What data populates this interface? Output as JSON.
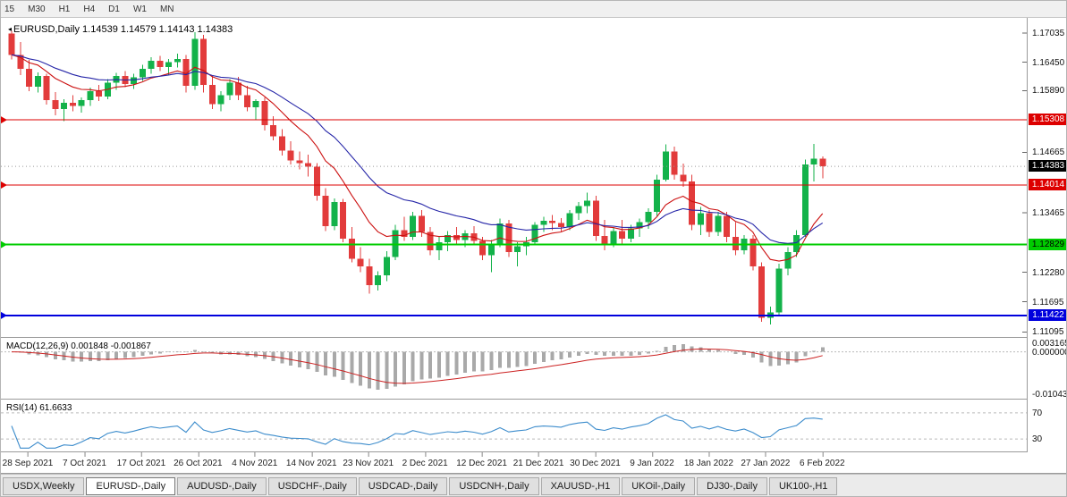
{
  "toolbar": {
    "timeframes": [
      "15",
      "M30",
      "H1",
      "H4",
      "D1",
      "W1",
      "MN"
    ]
  },
  "tabs": {
    "items": [
      {
        "label": "USDX,Weekly",
        "active": false
      },
      {
        "label": "EURUSD-,Daily",
        "active": true
      },
      {
        "label": "AUDUSD-,Daily",
        "active": false
      },
      {
        "label": "USDCHF-,Daily",
        "active": false
      },
      {
        "label": "USDCAD-,Daily",
        "active": false
      },
      {
        "label": "USDCNH-,Daily",
        "active": false
      },
      {
        "label": "XAUUSD-,H1",
        "active": false
      },
      {
        "label": "UKOil-,Daily",
        "active": false
      },
      {
        "label": "DJ30-,Daily",
        "active": false
      },
      {
        "label": "UK100-,H1",
        "active": false
      }
    ]
  },
  "main_chart": {
    "marker_glyph": "◂",
    "title_symbol": "EURUSD,Daily",
    "title_ohlc": "1.14539 1.14579 1.14143 1.14383",
    "price_min": 1.1103,
    "price_max": 1.1728,
    "current_price": {
      "label": "1.14383",
      "value": 1.14383
    },
    "levels": [
      {
        "label": "1.15308",
        "value": 1.15308,
        "color": "#dd0000",
        "tag_fg": "#ffffff",
        "thickness": 1
      },
      {
        "label": "1.14014",
        "value": 1.14014,
        "color": "#dd0000",
        "tag_fg": "#ffffff",
        "thickness": 1
      },
      {
        "label": "1.12829",
        "value": 1.12829,
        "color": "#00cc00",
        "tag_fg": "#000000",
        "thickness": 2
      },
      {
        "label": "1.11422",
        "value": 1.11422,
        "color": "#0000dd",
        "tag_fg": "#ffffff",
        "thickness": 2
      }
    ],
    "axis_ticks": [
      {
        "label": "1.17035",
        "value": 1.17035
      },
      {
        "label": "1.16450",
        "value": 1.1645
      },
      {
        "label": "1.15890",
        "value": 1.1589
      },
      {
        "label": "1.14665",
        "value": 1.14665
      },
      {
        "label": "1.13465",
        "value": 1.13465
      },
      {
        "label": "1.12280",
        "value": 1.1228
      },
      {
        "label": "1.11695",
        "value": 1.11695
      },
      {
        "label": "1.11095",
        "value": 1.11095
      }
    ],
    "colors": {
      "up": "#13b24a",
      "down": "#e23b3b",
      "ma_fast": "#cc1111",
      "ma_slow": "#2626a8",
      "bid_line": "#999999"
    }
  },
  "macd_panel": {
    "label": "MACD(12,26,9) 0.001848 -0.001867",
    "ticks": [
      "0.003165",
      "0.000000",
      "-0.010430"
    ],
    "histogram_color": "#a9a9a9",
    "signal_color": "#cc2222"
  },
  "rsi_panel": {
    "label": "RSI(14) 61.6633",
    "value": 61.6633,
    "ticks": [
      "70",
      "30"
    ],
    "levels": [
      70,
      30
    ],
    "line_color": "#3c8ccc"
  },
  "date_axis": {
    "labels": [
      "28 Sep 2021",
      "7 Oct 2021",
      "17 Oct 2021",
      "26 Oct 2021",
      "4 Nov 2021",
      "14 Nov 2021",
      "23 Nov 2021",
      "2 Dec 2021",
      "12 Dec 2021",
      "21 Dec 2021",
      "30 Dec 2021",
      "9 Jan 2022",
      "18 Jan 2022",
      "27 Jan 2022",
      "6 Feb 2022"
    ]
  },
  "chart_data": {
    "type": "candlestick",
    "symbol": "EURUSD",
    "timeframe": "Daily",
    "ohlc_last": {
      "open": 1.14539,
      "high": 1.14579,
      "low": 1.14143,
      "close": 1.14383
    },
    "ma_fast_period": 10,
    "ma_slow_period": 21,
    "macd_params": [
      12,
      26,
      9
    ],
    "rsi_period": 14,
    "candles": [
      [
        1.1702,
        1.1708,
        1.1651,
        1.166
      ],
      [
        1.166,
        1.1685,
        1.162,
        1.1632
      ],
      [
        1.1632,
        1.165,
        1.1588,
        1.1597
      ],
      [
        1.1597,
        1.1625,
        1.1585,
        1.1618
      ],
      [
        1.1618,
        1.1622,
        1.1561,
        1.157
      ],
      [
        1.157,
        1.1586,
        1.154,
        1.1552
      ],
      [
        1.1552,
        1.1572,
        1.1528,
        1.1565
      ],
      [
        1.1565,
        1.158,
        1.1548,
        1.1558
      ],
      [
        1.1558,
        1.1575,
        1.1545,
        1.157
      ],
      [
        1.157,
        1.1595,
        1.1558,
        1.1588
      ],
      [
        1.1588,
        1.16,
        1.1568,
        1.1577
      ],
      [
        1.1577,
        1.1612,
        1.1572,
        1.1605
      ],
      [
        1.1605,
        1.1624,
        1.159,
        1.1618
      ],
      [
        1.1618,
        1.1628,
        1.1596,
        1.1602
      ],
      [
        1.1602,
        1.1622,
        1.1592,
        1.1615
      ],
      [
        1.1615,
        1.164,
        1.1608,
        1.1632
      ],
      [
        1.1632,
        1.1655,
        1.1622,
        1.1648
      ],
      [
        1.1648,
        1.1658,
        1.1628,
        1.1636
      ],
      [
        1.1636,
        1.1652,
        1.162,
        1.1645
      ],
      [
        1.1645,
        1.1662,
        1.1635,
        1.1652
      ],
      [
        1.1652,
        1.166,
        1.1585,
        1.1598
      ],
      [
        1.1598,
        1.1705,
        1.159,
        1.1692
      ],
      [
        1.1692,
        1.17,
        1.1585,
        1.16
      ],
      [
        1.16,
        1.1618,
        1.1552,
        1.1562
      ],
      [
        1.1562,
        1.1588,
        1.1548,
        1.158
      ],
      [
        1.158,
        1.1612,
        1.157,
        1.1605
      ],
      [
        1.1605,
        1.1616,
        1.157,
        1.158
      ],
      [
        1.158,
        1.1598,
        1.1548,
        1.1556
      ],
      [
        1.1556,
        1.1572,
        1.153,
        1.1568
      ],
      [
        1.1568,
        1.1575,
        1.151,
        1.152
      ],
      [
        1.152,
        1.1538,
        1.149,
        1.1498
      ],
      [
        1.1498,
        1.1512,
        1.146,
        1.147
      ],
      [
        1.147,
        1.1488,
        1.1442,
        1.145
      ],
      [
        1.145,
        1.1468,
        1.1432,
        1.1445
      ],
      [
        1.1445,
        1.1462,
        1.1418,
        1.1438
      ],
      [
        1.1438,
        1.1445,
        1.137,
        1.138
      ],
      [
        1.138,
        1.1395,
        1.131,
        1.132
      ],
      [
        1.132,
        1.1375,
        1.1312,
        1.1368
      ],
      [
        1.1368,
        1.1374,
        1.1288,
        1.1295
      ],
      [
        1.1295,
        1.1318,
        1.1248,
        1.1255
      ],
      [
        1.1255,
        1.1278,
        1.1228,
        1.124
      ],
      [
        1.124,
        1.1255,
        1.1186,
        1.1202
      ],
      [
        1.1202,
        1.123,
        1.1192,
        1.1222
      ],
      [
        1.1222,
        1.127,
        1.121,
        1.1258
      ],
      [
        1.1258,
        1.1322,
        1.1252,
        1.1312
      ],
      [
        1.1312,
        1.1338,
        1.129,
        1.1298
      ],
      [
        1.1298,
        1.1348,
        1.1292,
        1.134
      ],
      [
        1.134,
        1.1352,
        1.1298,
        1.1308
      ],
      [
        1.1308,
        1.1318,
        1.1262,
        1.1272
      ],
      [
        1.1272,
        1.1298,
        1.1252,
        1.1288
      ],
      [
        1.1288,
        1.131,
        1.127,
        1.1302
      ],
      [
        1.1302,
        1.1318,
        1.1282,
        1.1292
      ],
      [
        1.1292,
        1.1312,
        1.1278,
        1.1305
      ],
      [
        1.1305,
        1.132,
        1.1282,
        1.129
      ],
      [
        1.129,
        1.1298,
        1.1252,
        1.1262
      ],
      [
        1.1262,
        1.1292,
        1.1228,
        1.1285
      ],
      [
        1.1285,
        1.1335,
        1.1278,
        1.1325
      ],
      [
        1.1325,
        1.1332,
        1.1258,
        1.1268
      ],
      [
        1.1268,
        1.1288,
        1.124,
        1.128
      ],
      [
        1.128,
        1.1298,
        1.1262,
        1.1288
      ],
      [
        1.1288,
        1.1328,
        1.1282,
        1.1322
      ],
      [
        1.1322,
        1.1338,
        1.1308,
        1.133
      ],
      [
        1.133,
        1.1342,
        1.1312,
        1.1326
      ],
      [
        1.1326,
        1.1336,
        1.1308,
        1.1318
      ],
      [
        1.1318,
        1.1352,
        1.1312,
        1.1345
      ],
      [
        1.1345,
        1.1368,
        1.1332,
        1.136
      ],
      [
        1.136,
        1.1386,
        1.1345,
        1.137
      ],
      [
        1.137,
        1.138,
        1.129,
        1.13
      ],
      [
        1.13,
        1.1332,
        1.1272,
        1.1285
      ],
      [
        1.1285,
        1.1318,
        1.1278,
        1.131
      ],
      [
        1.131,
        1.1332,
        1.1285,
        1.1295
      ],
      [
        1.1295,
        1.1322,
        1.1288,
        1.1315
      ],
      [
        1.1315,
        1.1335,
        1.1298,
        1.1328
      ],
      [
        1.1328,
        1.1355,
        1.1314,
        1.1348
      ],
      [
        1.1348,
        1.1422,
        1.134,
        1.1412
      ],
      [
        1.1412,
        1.1482,
        1.1408,
        1.1468
      ],
      [
        1.1468,
        1.1478,
        1.1412,
        1.1422
      ],
      [
        1.1422,
        1.1444,
        1.1398,
        1.1408
      ],
      [
        1.1408,
        1.1422,
        1.1312,
        1.1322
      ],
      [
        1.1322,
        1.1358,
        1.1302,
        1.1345
      ],
      [
        1.1345,
        1.1352,
        1.1298,
        1.1308
      ],
      [
        1.1308,
        1.1348,
        1.13,
        1.134
      ],
      [
        1.134,
        1.1348,
        1.1288,
        1.1298
      ],
      [
        1.1298,
        1.1328,
        1.1262,
        1.1272
      ],
      [
        1.1272,
        1.1302,
        1.1264,
        1.1295
      ],
      [
        1.1295,
        1.1302,
        1.1232,
        1.124
      ],
      [
        1.124,
        1.1248,
        1.113,
        1.1138
      ],
      [
        1.1138,
        1.116,
        1.1124,
        1.1148
      ],
      [
        1.1148,
        1.1245,
        1.1142,
        1.1235
      ],
      [
        1.1235,
        1.1278,
        1.1222,
        1.1268
      ],
      [
        1.1268,
        1.1312,
        1.1258,
        1.1302
      ],
      [
        1.1302,
        1.1452,
        1.1298,
        1.1442
      ],
      [
        1.1442,
        1.1483,
        1.1408,
        1.1454
      ],
      [
        1.14539,
        1.14579,
        1.14143,
        1.14383
      ]
    ]
  }
}
